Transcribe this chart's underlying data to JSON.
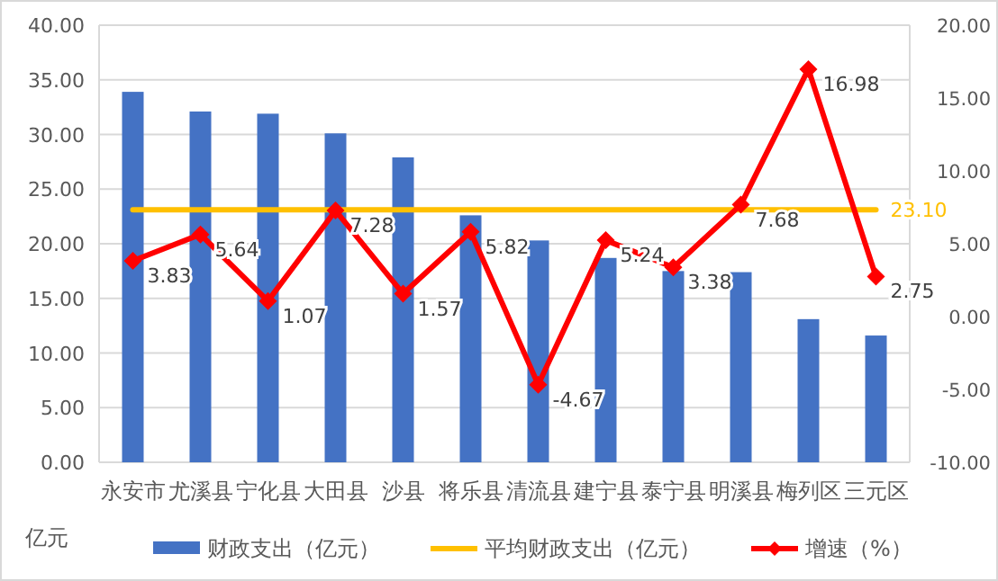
{
  "chart_data": {
    "type": "bar",
    "categories": [
      "永安市",
      "尤溪县",
      "宁化县",
      "大田县",
      "沙县",
      "将乐县",
      "清流县",
      "建宁县",
      "泰宁县",
      "明溪县",
      "梅列区",
      "三元区"
    ],
    "series": [
      {
        "name": "财政支出（亿元）",
        "color": "#4472c4",
        "values": [
          33.9,
          32.1,
          31.9,
          30.1,
          27.9,
          22.6,
          20.3,
          18.7,
          17.5,
          17.4,
          13.1,
          11.6
        ]
      },
      {
        "name": "平均财政支出（亿元）",
        "type": "line",
        "color": "#ffc000",
        "values": [
          23.1,
          23.1,
          23.1,
          23.1,
          23.1,
          23.1,
          23.1,
          23.1,
          23.1,
          23.1,
          23.1,
          23.1
        ],
        "value_labels": [
          null,
          null,
          null,
          null,
          null,
          null,
          null,
          null,
          null,
          null,
          null,
          "23.10"
        ]
      },
      {
        "name": "增速（%）",
        "type": "line",
        "axis": "y2",
        "color": "#ff0000",
        "marker": "diamond",
        "values": [
          3.83,
          5.64,
          1.07,
          7.28,
          1.57,
          5.82,
          -4.67,
          5.24,
          3.38,
          7.68,
          16.98,
          2.75
        ],
        "value_labels": [
          "3.83",
          "5.64",
          "1.07",
          "7.28",
          "1.57",
          "5.82",
          "-4.67",
          "5.24",
          "3.38",
          "7.68",
          "16.98",
          "2.75"
        ]
      }
    ],
    "ylim": [
      0,
      40
    ],
    "yticks": [
      {
        "value": 0,
        "label": "0.00"
      },
      {
        "value": 5,
        "label": "5.00"
      },
      {
        "value": 10,
        "label": "10.00"
      },
      {
        "value": 15,
        "label": "15.00"
      },
      {
        "value": 20,
        "label": "20.00"
      },
      {
        "value": 25,
        "label": "25.00"
      },
      {
        "value": 30,
        "label": "30.00"
      },
      {
        "value": 35,
        "label": "35.00"
      },
      {
        "value": 40,
        "label": "40.00"
      }
    ],
    "y2lim": [
      -10,
      20
    ],
    "y2ticks": [
      {
        "value": -10,
        "label": "-10.00"
      },
      {
        "value": -5,
        "label": "-5.00"
      },
      {
        "value": 0,
        "label": "0.00"
      },
      {
        "value": 5,
        "label": "5.00"
      },
      {
        "value": 10,
        "label": "10.00"
      },
      {
        "value": 15,
        "label": "15.00"
      },
      {
        "value": 20,
        "label": "20.00"
      }
    ],
    "grid": "y",
    "legend": "bottom",
    "annotations": [
      "亿元"
    ]
  }
}
